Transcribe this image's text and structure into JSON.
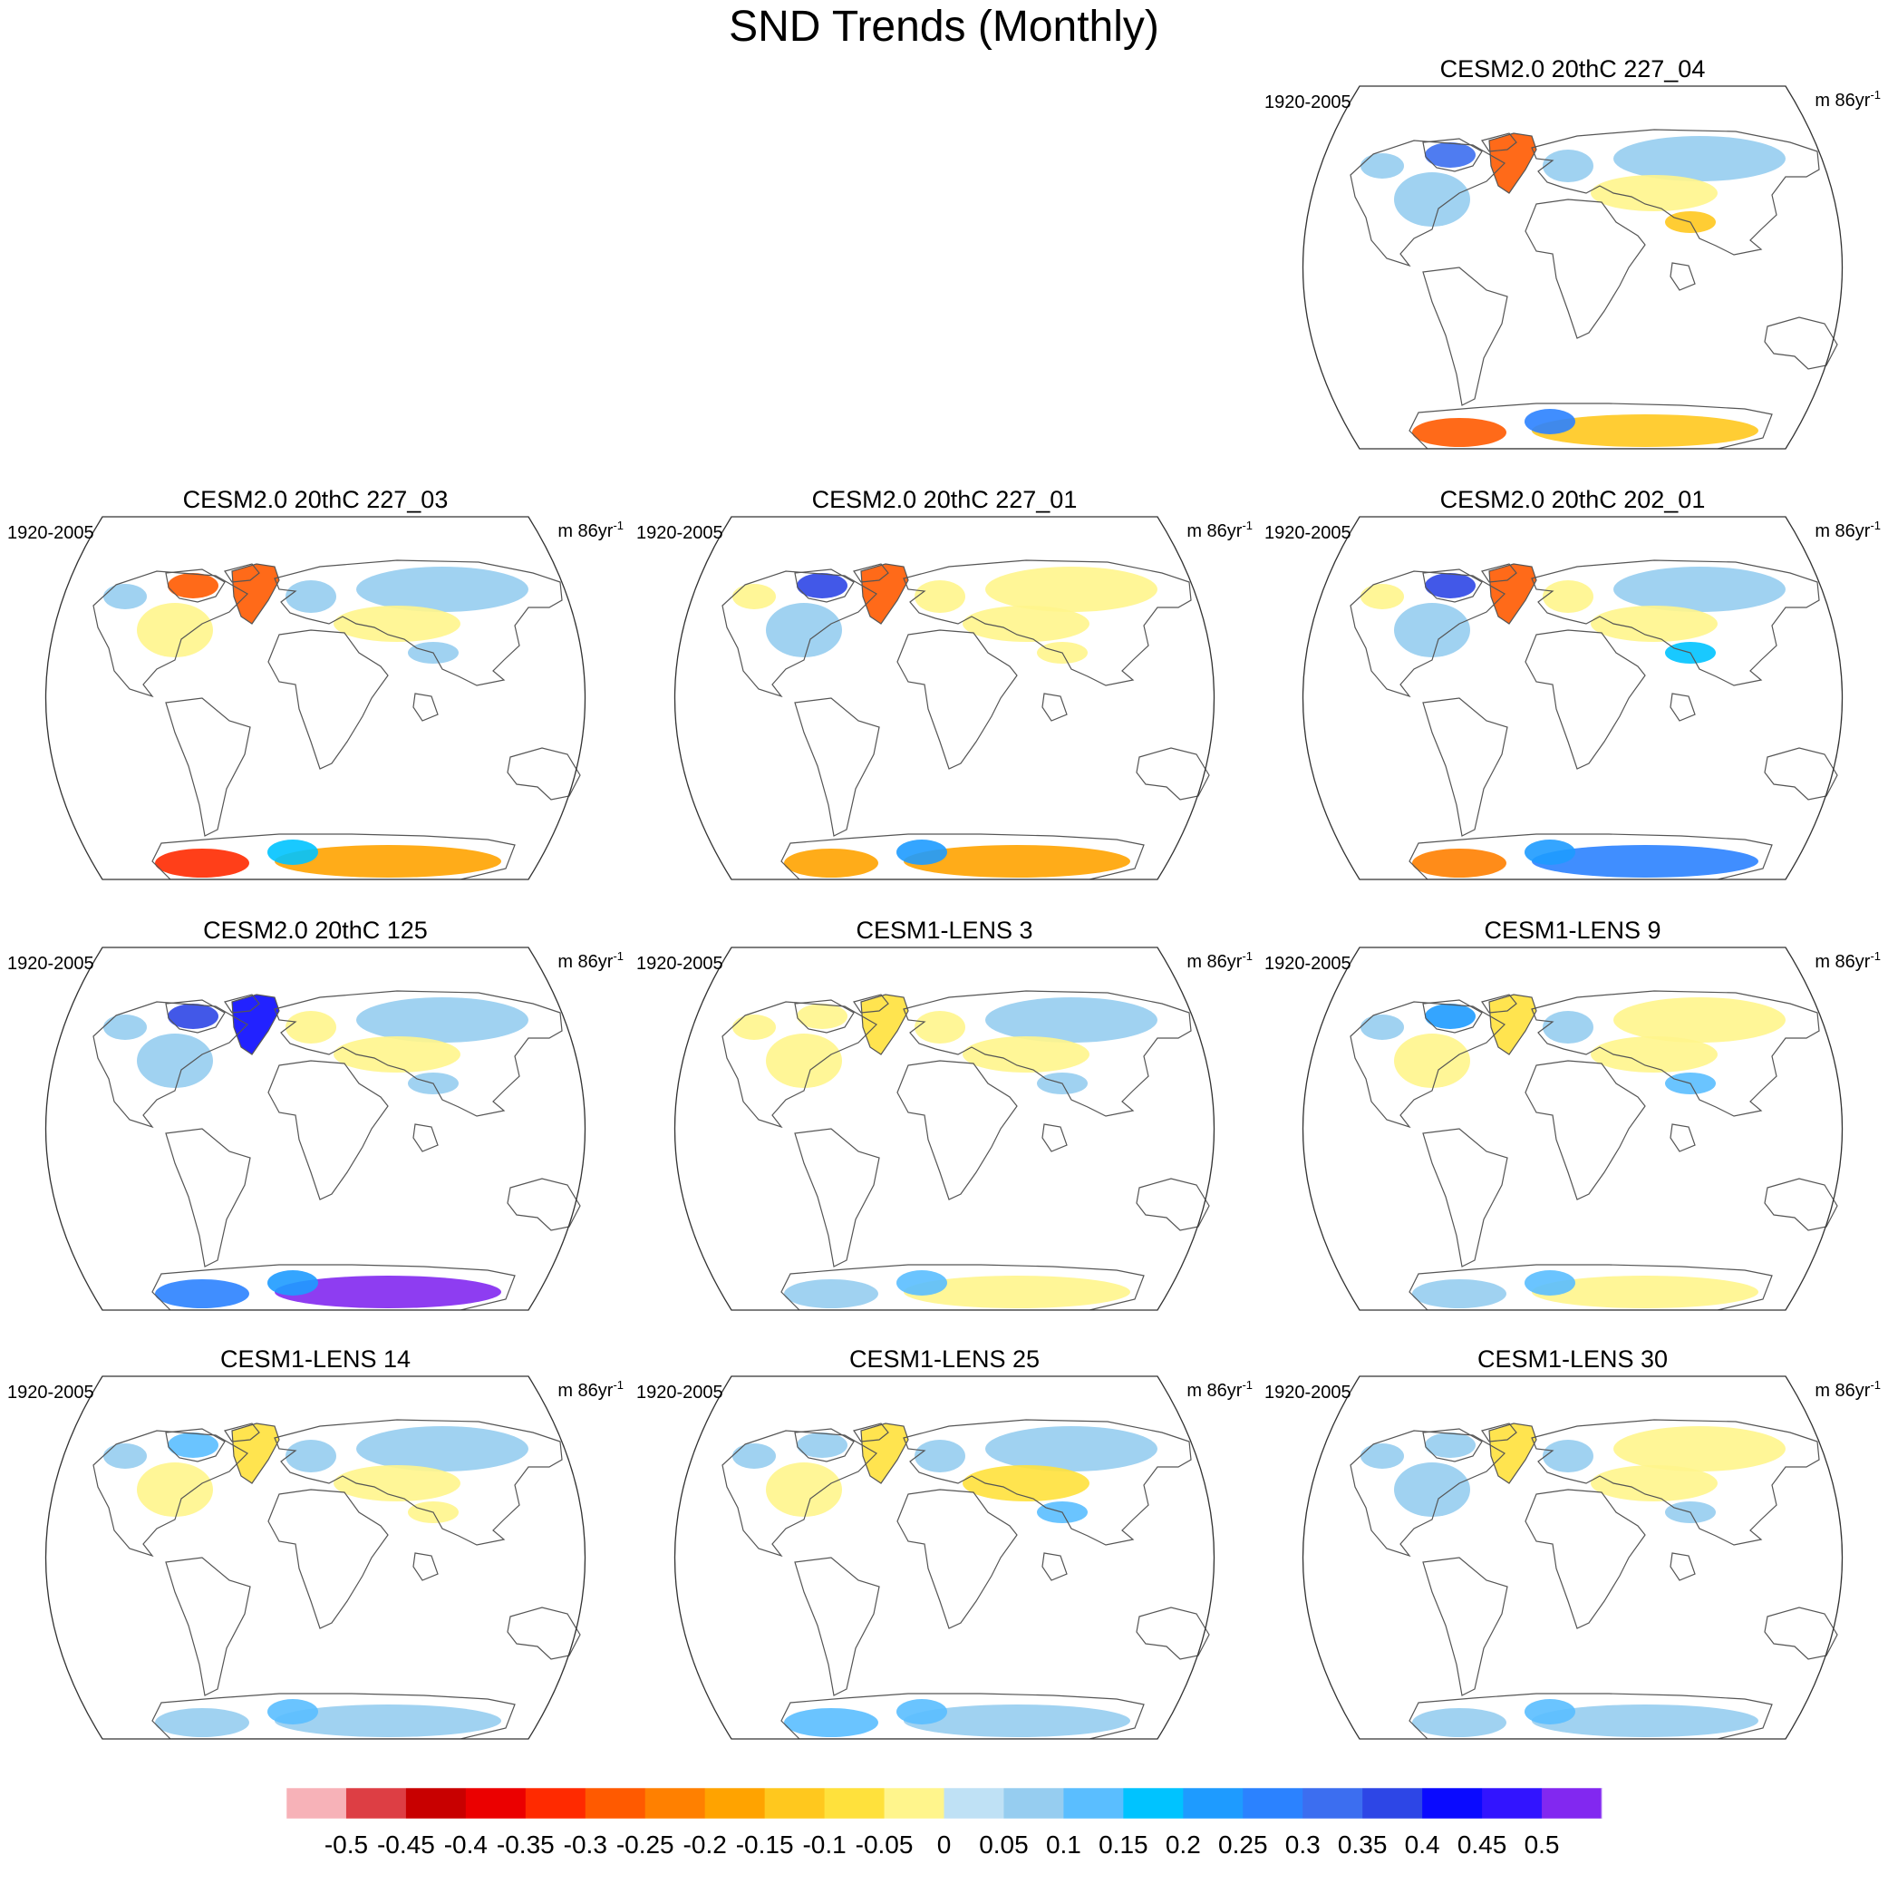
{
  "chart_data": {
    "type": "heatmap",
    "title": "SND Trends (Monthly)",
    "projection": "Robinson (global)",
    "panels": [
      {
        "id": "cesm2-227-04",
        "title": "CESM2.0 20thC 227_04",
        "period": "1920-2005",
        "units_prefix": "m 86yr",
        "units_sup": "-1",
        "regions": {
          "NAm_interior": 0.05,
          "Alaska": 0.05,
          "Canadian_Archipelago": 0.3,
          "Greenland": -0.3,
          "Scandinavia": 0.05,
          "Siberia": 0.05,
          "Central_Asia": -0.05,
          "Tibet": -0.15,
          "Antarctica_W": -0.3,
          "Antarctica_E": -0.15,
          "Antarctica_Pen": 0.25
        }
      },
      {
        "id": "cesm2-227-03",
        "title": "CESM2.0 20thC 227_03",
        "period": "1920-2005",
        "units_prefix": "m 86yr",
        "units_sup": "-1",
        "regions": {
          "NAm_interior": -0.05,
          "Alaska": 0.05,
          "Canadian_Archipelago": -0.3,
          "Greenland": -0.3,
          "Scandinavia": 0.05,
          "Siberia": 0.05,
          "Central_Asia": -0.05,
          "Tibet": 0.05,
          "Antarctica_W": -0.35,
          "Antarctica_E": -0.2,
          "Antarctica_Pen": 0.15
        }
      },
      {
        "id": "cesm2-227-01",
        "title": "CESM2.0 20thC 227_01",
        "period": "1920-2005",
        "units_prefix": "m 86yr",
        "units_sup": "-1",
        "regions": {
          "NAm_interior": 0.05,
          "Alaska": -0.05,
          "Canadian_Archipelago": 0.35,
          "Greenland": -0.3,
          "Scandinavia": -0.05,
          "Siberia": -0.05,
          "Central_Asia": -0.05,
          "Tibet": -0.05,
          "Antarctica_W": -0.2,
          "Antarctica_E": -0.2,
          "Antarctica_Pen": 0.2
        }
      },
      {
        "id": "cesm2-202-01",
        "title": "CESM2.0 20thC 202_01",
        "period": "1920-2005",
        "units_prefix": "m 86yr",
        "units_sup": "-1",
        "regions": {
          "NAm_interior": 0.05,
          "Alaska": -0.05,
          "Canadian_Archipelago": 0.35,
          "Greenland": -0.3,
          "Scandinavia": -0.05,
          "Siberia": 0.05,
          "Central_Asia": -0.05,
          "Tibet": 0.15,
          "Antarctica_W": -0.25,
          "Antarctica_E": 0.25,
          "Antarctica_Pen": 0.2
        }
      },
      {
        "id": "cesm2-125",
        "title": "CESM2.0 20thC 125",
        "period": "1920-2005",
        "units_prefix": "m 86yr",
        "units_sup": "-1",
        "regions": {
          "NAm_interior": 0.05,
          "Alaska": 0.05,
          "Canadian_Archipelago": 0.35,
          "Greenland": 0.4,
          "Scandinavia": -0.05,
          "Siberia": 0.05,
          "Central_Asia": -0.05,
          "Tibet": 0.05,
          "Antarctica_W": 0.25,
          "Antarctica_E": 0.5,
          "Antarctica_Pen": 0.2
        }
      },
      {
        "id": "lens-3",
        "title": "CESM1-LENS 3",
        "period": "1920-2005",
        "units_prefix": "m 86yr",
        "units_sup": "-1",
        "regions": {
          "NAm_interior": -0.05,
          "Alaska": -0.05,
          "Canadian_Archipelago": -0.05,
          "Greenland": -0.1,
          "Scandinavia": -0.05,
          "Siberia": 0.05,
          "Central_Asia": -0.05,
          "Tibet": 0.05,
          "Antarctica_W": 0.05,
          "Antarctica_E": -0.05,
          "Antarctica_Pen": 0.1
        }
      },
      {
        "id": "lens-9",
        "title": "CESM1-LENS 9",
        "period": "1920-2005",
        "units_prefix": "m 86yr",
        "units_sup": "-1",
        "regions": {
          "NAm_interior": -0.05,
          "Alaska": 0.05,
          "Canadian_Archipelago": 0.2,
          "Greenland": -0.1,
          "Scandinavia": 0.05,
          "Siberia": -0.05,
          "Central_Asia": -0.05,
          "Tibet": 0.1,
          "Antarctica_W": 0.05,
          "Antarctica_E": -0.05,
          "Antarctica_Pen": 0.1
        }
      },
      {
        "id": "lens-14",
        "title": "CESM1-LENS 14",
        "period": "1920-2005",
        "units_prefix": "m 86yr",
        "units_sup": "-1",
        "regions": {
          "NAm_interior": -0.05,
          "Alaska": 0.05,
          "Canadian_Archipelago": 0.1,
          "Greenland": -0.1,
          "Scandinavia": 0.05,
          "Siberia": 0.05,
          "Central_Asia": -0.05,
          "Tibet": -0.05,
          "Antarctica_W": 0.05,
          "Antarctica_E": 0.05,
          "Antarctica_Pen": 0.1
        }
      },
      {
        "id": "lens-25",
        "title": "CESM1-LENS 25",
        "period": "1920-2005",
        "units_prefix": "m 86yr",
        "units_sup": "-1",
        "regions": {
          "NAm_interior": -0.05,
          "Alaska": 0.05,
          "Canadian_Archipelago": 0.05,
          "Greenland": -0.1,
          "Scandinavia": 0.05,
          "Siberia": 0.05,
          "Central_Asia": -0.1,
          "Tibet": 0.1,
          "Antarctica_W": 0.1,
          "Antarctica_E": 0.05,
          "Antarctica_Pen": 0.1
        }
      },
      {
        "id": "lens-30",
        "title": "CESM1-LENS 30",
        "period": "1920-2005",
        "units_prefix": "m 86yr",
        "units_sup": "-1",
        "regions": {
          "NAm_interior": 0.05,
          "Alaska": 0.05,
          "Canadian_Archipelago": 0.05,
          "Greenland": -0.1,
          "Scandinavia": 0.05,
          "Siberia": -0.05,
          "Central_Asia": -0.05,
          "Tibet": 0.05,
          "Antarctica_W": 0.05,
          "Antarctica_E": 0.05,
          "Antarctica_Pen": 0.1
        }
      }
    ],
    "colorbar": {
      "labels": [
        "-0.5",
        "-0.45",
        "-0.4",
        "-0.35",
        "-0.3",
        "-0.25",
        "-0.2",
        "-0.15",
        "-0.1",
        "-0.05",
        "0",
        "0.05",
        "0.1",
        "0.15",
        "0.2",
        "0.25",
        "0.3",
        "0.35",
        "0.4",
        "0.45",
        "0.5"
      ],
      "colors": [
        "#f7b2b8",
        "#dd3e44",
        "#c80000",
        "#eb0000",
        "#ff2a00",
        "#ff5a00",
        "#ff8000",
        "#ffa300",
        "#ffc81e",
        "#ffe13c",
        "#fff58c",
        "#bfe1f5",
        "#96cdf0",
        "#5abeff",
        "#00c3ff",
        "#1e9bff",
        "#2b82ff",
        "#3c6ef0",
        "#2d46e6",
        "#0a0aff",
        "#3214ff",
        "#8228f0"
      ]
    }
  }
}
